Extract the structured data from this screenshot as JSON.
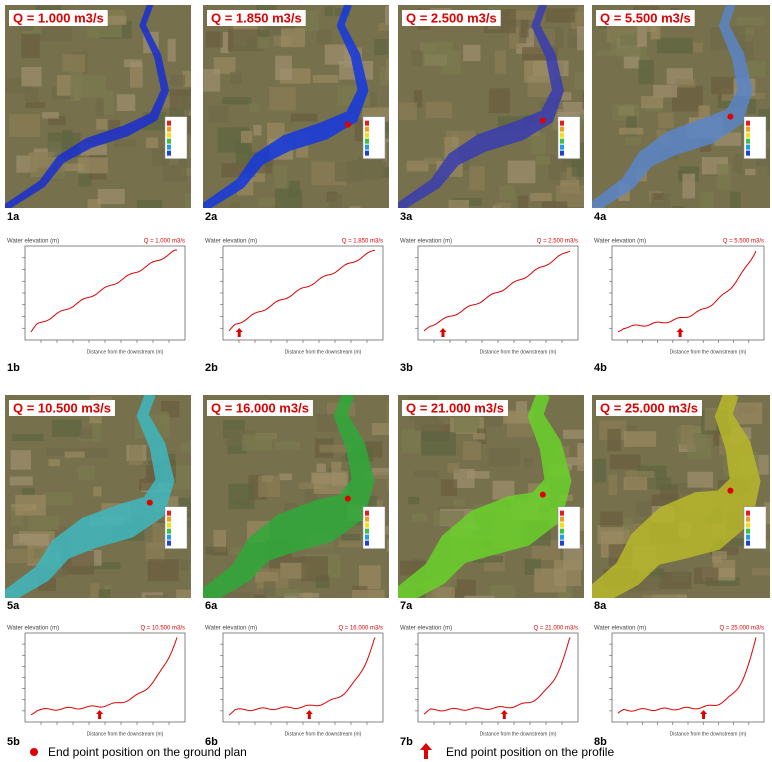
{
  "panels": [
    {
      "q": "Q = 1.000 m3/s",
      "map_id": "1a",
      "profile_id": "1b",
      "water_color": "#1a2fd0"
    },
    {
      "q": "Q = 1.850 m3/s",
      "map_id": "2a",
      "profile_id": "2b",
      "water_color": "#1438e0"
    },
    {
      "q": "Q = 2.500 m3/s",
      "map_id": "3a",
      "profile_id": "3b",
      "water_color": "#3a3db0"
    },
    {
      "q": "Q = 5.500 m3/s",
      "map_id": "4a",
      "profile_id": "4b",
      "water_color": "#5a86c8"
    },
    {
      "q": "Q = 10.500 m3/s",
      "map_id": "5a",
      "profile_id": "5b",
      "water_color": "#3fb8c0"
    },
    {
      "q": "Q = 16.000 m3/s",
      "map_id": "6a",
      "profile_id": "6b",
      "water_color": "#2faa3a"
    },
    {
      "q": "Q = 21.000 m3/s",
      "map_id": "7a",
      "profile_id": "7b",
      "water_color": "#6ad22a"
    },
    {
      "q": "Q = 25.000 m3/s",
      "map_id": "8a",
      "profile_id": "8b",
      "water_color": "#b8b82a"
    }
  ],
  "profile_y_label": "Water elevation (m)",
  "profile_x_label": "Distance from the downstream (m)",
  "legend": {
    "ground_plan": "End point position on the ground plan",
    "profile": "End point position on the profile"
  }
}
